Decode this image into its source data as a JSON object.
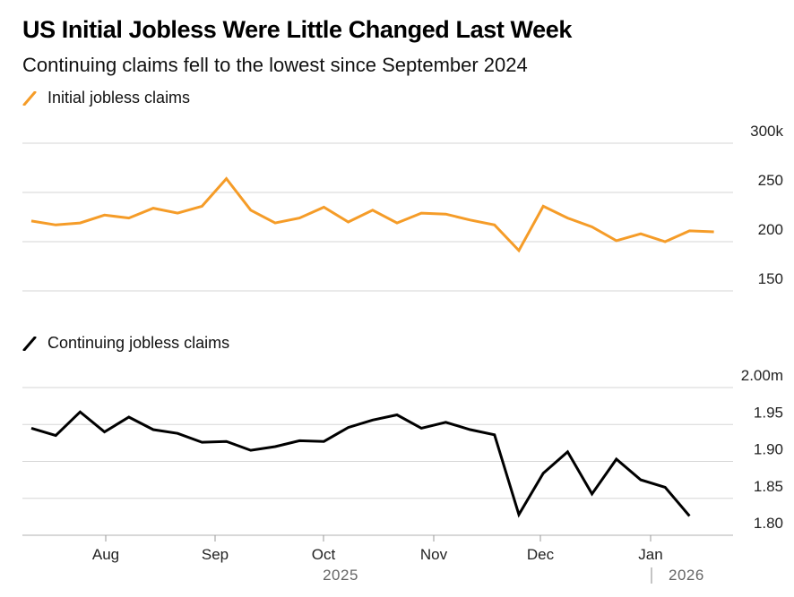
{
  "title": "US Initial Jobless Were Little Changed Last Week",
  "subtitle": "Continuing claims fell to the lowest since September 2024",
  "chart_data": [
    {
      "type": "line",
      "color": "#f59c28",
      "legend": "Initial jobless claims",
      "yticks": [
        "300k",
        "250",
        "200",
        "150"
      ],
      "ylim": [
        150,
        300
      ],
      "y_unit": "thousands",
      "week_index_start": 0,
      "values": [
        221,
        217,
        219,
        227,
        224,
        234,
        229,
        236,
        264,
        232,
        219,
        224,
        235,
        220,
        232,
        219,
        229,
        228,
        222,
        217,
        191,
        236,
        224,
        215,
        201,
        208,
        200,
        211,
        210
      ]
    },
    {
      "type": "line",
      "color": "#000000",
      "legend": "Continuing jobless claims",
      "yticks": [
        "2.00m",
        "1.95",
        "1.90",
        "1.85",
        "1.80"
      ],
      "ylim": [
        1.8,
        2.0
      ],
      "y_unit": "millions",
      "values": [
        1.945,
        1.935,
        1.967,
        1.94,
        1.96,
        1.943,
        1.938,
        1.926,
        1.927,
        1.915,
        1.92,
        1.928,
        1.927,
        1.946,
        1.956,
        1.963,
        1.945,
        1.953,
        1.943,
        1.936,
        1.828,
        1.884,
        1.913,
        1.856,
        1.903,
        1.875,
        1.865,
        1.826
      ]
    }
  ],
  "x_axis": {
    "labels": [
      "Aug",
      "Sep",
      "Oct",
      "Nov",
      "Dec",
      "Jan"
    ],
    "years": [
      "2025",
      "2026"
    ]
  }
}
